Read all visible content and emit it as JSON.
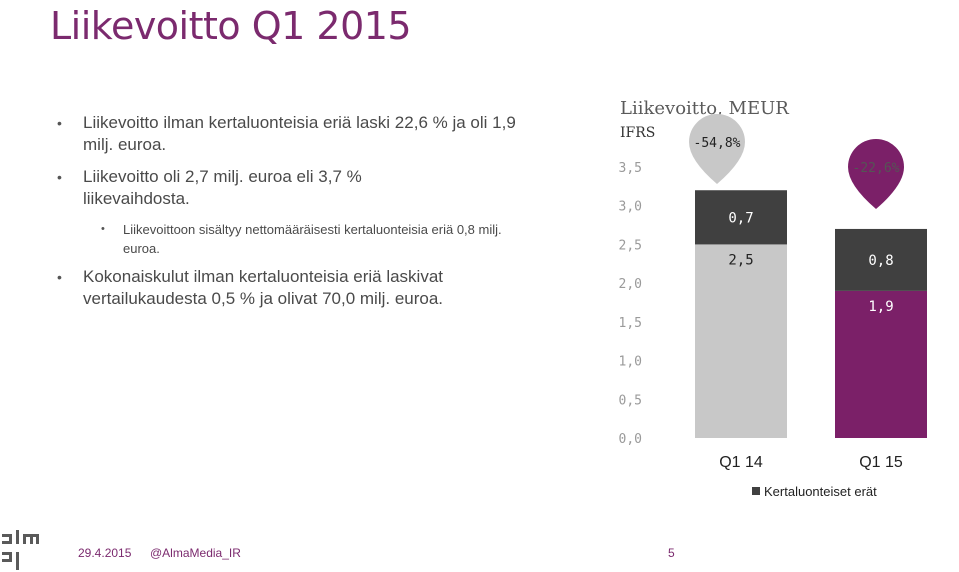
{
  "slide": {
    "title": "Liikevoitto Q1 2015",
    "bullets": [
      {
        "level": 1,
        "text": "Liikevoitto ilman kertaluonteisia eriä laski 22,6 % ja oli 1,9 milj. euroa."
      },
      {
        "level": 1,
        "text": "Liikevoitto oli 2,7 milj. euroa eli 3,7 % liikevaihdosta."
      },
      {
        "level": 2,
        "text": "Liikevoittoon sisältyy nettomääräisesti kertaluonteisia eriä 0,8 milj. euroa."
      },
      {
        "level": 1,
        "text": "Kokonaiskulut ilman kertaluonteisia eriä laskivat vertailukaudesta 0,5 % ja olivat 70,0 milj. euroa."
      }
    ],
    "footer": {
      "date": "29.4.2015",
      "handle": "@AlmaMedia_IR",
      "page": "5"
    }
  },
  "colors": {
    "title": "#7b2a6e",
    "q1_14_base": "#c8c8c8",
    "q1_15_base": "#7b2068",
    "one_off": "#404040",
    "callout_q1_14": "#c8c8c8",
    "callout_q1_15": "#7b2068"
  },
  "chart_data": {
    "type": "bar",
    "stacked": true,
    "title": "Liikevoitto, MEUR",
    "subtitle": "IFRS",
    "categories": [
      "Q1 14",
      "Q1 15"
    ],
    "series": [
      {
        "name": "",
        "values": [
          2.5,
          1.9
        ],
        "labels": [
          "2,5",
          "1,9"
        ]
      },
      {
        "name": "Kertaluonteiset erät",
        "values": [
          0.7,
          0.8
        ],
        "labels": [
          "0,7",
          "0,8"
        ]
      }
    ],
    "callouts": [
      "-54,8%",
      "-22,6%"
    ],
    "ylim": [
      0,
      3.5
    ],
    "yticks": [
      0,
      0.5,
      1.0,
      1.5,
      2.0,
      2.5,
      3.0,
      3.5
    ],
    "ytick_labels": [
      "0,0",
      "0,5",
      "1,0",
      "1,5",
      "2,0",
      "2,5",
      "3,0",
      "3,5"
    ],
    "grid": false,
    "legend": "bottom"
  }
}
